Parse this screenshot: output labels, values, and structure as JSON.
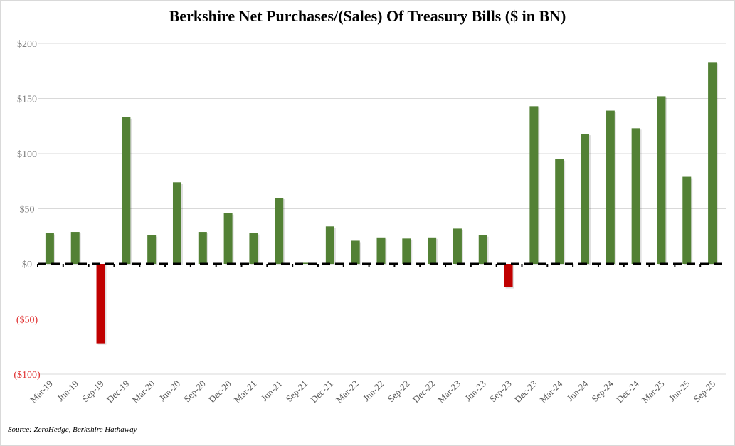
{
  "chart_data": {
    "type": "bar",
    "title": "Berkshire Net Purchases/(Sales) Of Treasury Bills ($ in BN)",
    "xlabel": "",
    "ylabel": "",
    "ylim": [
      -100,
      200
    ],
    "grid": true,
    "legend": "none",
    "yticks": [
      {
        "value": 200,
        "label": "$200"
      },
      {
        "value": 150,
        "label": "$150"
      },
      {
        "value": 100,
        "label": "$100"
      },
      {
        "value": 50,
        "label": "$50"
      },
      {
        "value": 0,
        "label": "$0"
      },
      {
        "value": -50,
        "label": "($50)"
      },
      {
        "value": -100,
        "label": "($100)"
      }
    ],
    "categories": [
      "Mar-19",
      "Jun-19",
      "Sep-19",
      "Dec-19",
      "Mar-20",
      "Jun-20",
      "Sep-20",
      "Dec-20",
      "Mar-21",
      "Jun-21",
      "Sep-21",
      "Dec-21",
      "Mar-22",
      "Jun-22",
      "Sep-22",
      "Dec-22",
      "Mar-23",
      "Jun-23",
      "Sep-23",
      "Dec-23",
      "Mar-24",
      "Jun-24",
      "Sep-24",
      "Dec-24",
      "Mar-25",
      "Jun-25",
      "Sep-25"
    ],
    "series": [
      {
        "name": "Net Purchases/(Sales)",
        "values": [
          28,
          29,
          -72,
          133,
          26,
          74,
          29,
          46,
          28,
          60,
          1,
          34,
          21,
          24,
          23,
          24,
          32,
          26,
          -21,
          143,
          95,
          118,
          139,
          123,
          152,
          79,
          183
        ]
      }
    ],
    "colors": {
      "positive": "#538135",
      "negative": "#c00000",
      "negative_label": "#e03030",
      "positive_label": "#7f7f7f",
      "grid": "#d9d9d9",
      "zero_line": "#000000"
    },
    "source": "Source: ZeroHedge, Berkshire Hathaway"
  }
}
